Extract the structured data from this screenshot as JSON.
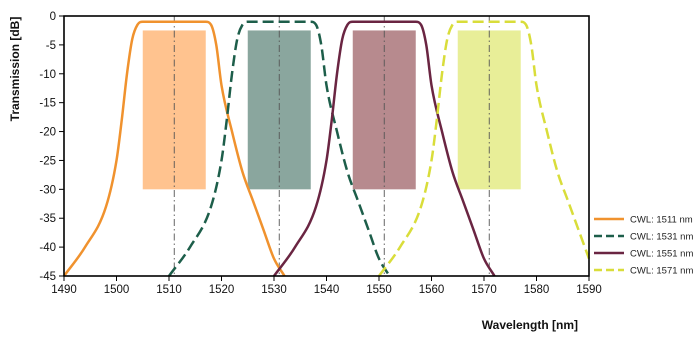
{
  "chart_data": {
    "type": "line",
    "xlabel": "Wavelength [nm]",
    "ylabel": "Transmission [dB]",
    "xlim": [
      1490,
      1590
    ],
    "ylim": [
      -45,
      0
    ],
    "x_ticks": [
      1490,
      1500,
      1510,
      1520,
      1530,
      1540,
      1550,
      1560,
      1570,
      1580,
      1590
    ],
    "y_ticks": [
      0,
      -5,
      -10,
      -15,
      -20,
      -25,
      -30,
      -35,
      -40,
      -45
    ],
    "grid": false,
    "legend_position": "right",
    "series": [
      {
        "name": "CWL: 1511 nm",
        "center": 1511,
        "color": "#F0922E",
        "dash": "solid",
        "x": [
          1490,
          1494,
          1498,
          1500,
          1501,
          1502,
          1503,
          1504,
          1505,
          1506,
          1510,
          1515,
          1517,
          1518,
          1519,
          1520,
          1522,
          1524,
          1526,
          1528,
          1530,
          1532
        ],
        "values": [
          -45,
          -40,
          -33,
          -25,
          -18,
          -10,
          -4,
          -1.5,
          -1,
          -1,
          -1,
          -1,
          -1,
          -1.5,
          -5,
          -12,
          -20,
          -27,
          -32,
          -37,
          -42,
          -45
        ]
      },
      {
        "name": "CWL: 1531 nm",
        "center": 1531,
        "color": "#1D5E4A",
        "dash": "dashed",
        "x": [
          1510,
          1514,
          1518,
          1520,
          1521,
          1522,
          1523,
          1524,
          1525,
          1526,
          1530,
          1535,
          1537,
          1538,
          1539,
          1540,
          1542,
          1544,
          1546,
          1548,
          1550,
          1552
        ],
        "values": [
          -45,
          -40,
          -33,
          -25,
          -18,
          -10,
          -4,
          -1.5,
          -1,
          -1,
          -1,
          -1,
          -1,
          -1.5,
          -5,
          -12,
          -20,
          -27,
          -32,
          -37,
          -42,
          -45
        ]
      },
      {
        "name": "CWL: 1551 nm",
        "center": 1551,
        "color": "#6A2542",
        "dash": "solid",
        "x": [
          1530,
          1534,
          1538,
          1540,
          1541,
          1542,
          1543,
          1544,
          1545,
          1546,
          1550,
          1555,
          1557,
          1558,
          1559,
          1560,
          1562,
          1564,
          1566,
          1568,
          1570,
          1572
        ],
        "values": [
          -45,
          -40,
          -33,
          -25,
          -18,
          -10,
          -4,
          -1.5,
          -1,
          -1,
          -1,
          -1,
          -1,
          -1.5,
          -5,
          -12,
          -20,
          -27,
          -32,
          -37,
          -42,
          -45
        ]
      },
      {
        "name": "CWL: 1571 nm",
        "center": 1571,
        "color": "#D9DD3A",
        "dash": "dashed",
        "x": [
          1550,
          1554,
          1558,
          1560,
          1561,
          1562,
          1563,
          1564,
          1565,
          1566,
          1570,
          1575,
          1577,
          1578,
          1579,
          1580,
          1582,
          1584,
          1586,
          1588,
          1590
        ],
        "values": [
          -45,
          -40,
          -33,
          -25,
          -18,
          -10,
          -4,
          -1.5,
          -1,
          -1,
          -1,
          -1,
          -1,
          -1.5,
          -5,
          -12,
          -20,
          -27,
          -32,
          -37,
          -42
        ]
      }
    ],
    "passbands": [
      {
        "x0": 1505,
        "x1": 1517,
        "y0": -2.5,
        "y1": -30,
        "color": "#FFC38F"
      },
      {
        "x0": 1525,
        "x1": 1537,
        "y0": -2.5,
        "y1": -30,
        "color": "#8AA69E"
      },
      {
        "x0": 1545,
        "x1": 1557,
        "y0": -2.5,
        "y1": -30,
        "color": "#B78A8E"
      },
      {
        "x0": 1565,
        "x1": 1577,
        "y0": -2.5,
        "y1": -30,
        "color": "#E8EE98"
      }
    ]
  }
}
